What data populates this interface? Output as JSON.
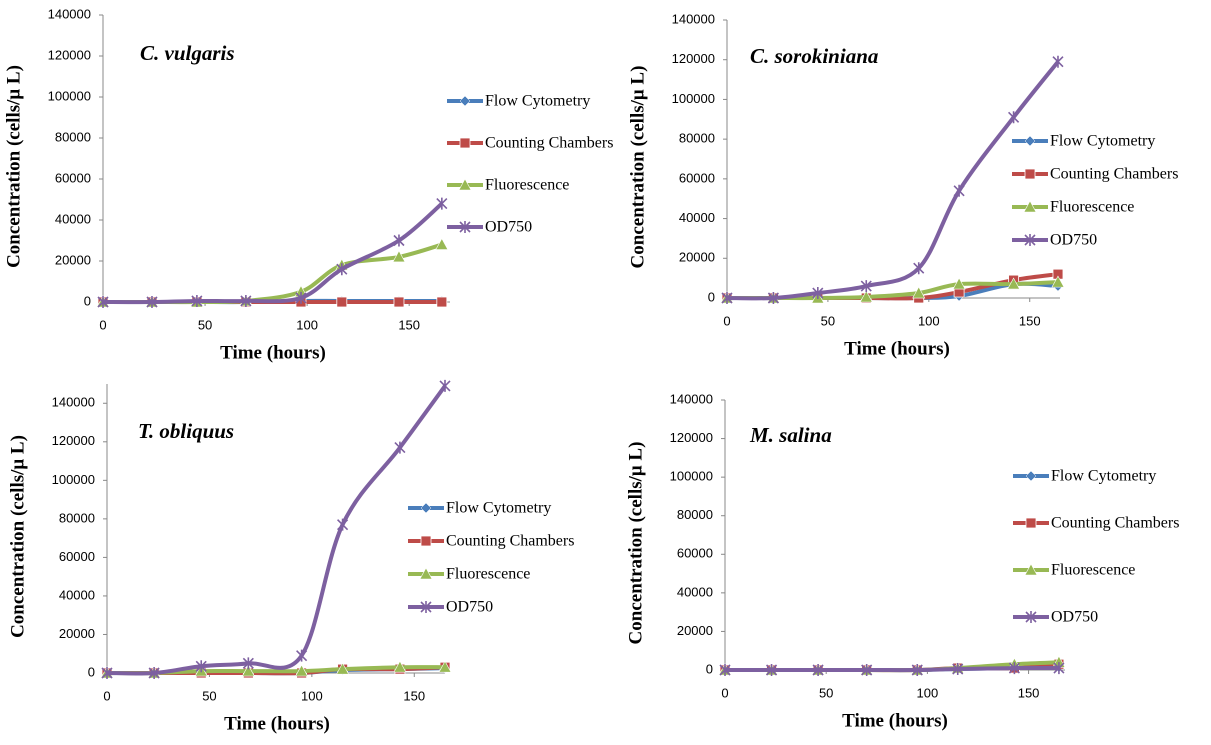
{
  "chart_data": [
    {
      "type": "line",
      "title": "C. vulgaris",
      "x_label": "Time (hours)",
      "y_label": "Concentration (cells/μ L)",
      "x": [
        0,
        24,
        46,
        70,
        97,
        117,
        145,
        166
      ],
      "xlim": [
        0,
        170
      ],
      "xticks": [
        0,
        50,
        100,
        150
      ],
      "ylim": [
        0,
        140000
      ],
      "yticks": [
        0,
        20000,
        40000,
        60000,
        80000,
        100000,
        120000,
        140000
      ],
      "grid": false,
      "series": [
        {
          "name": "Flow Cytometry",
          "color": "#4a7ebb",
          "marker": "diamond",
          "values": [
            0,
            0,
            0,
            0,
            500,
            500,
            500,
            500
          ]
        },
        {
          "name": "Counting Chambers",
          "color": "#be4b48",
          "marker": "square",
          "values": [
            0,
            0,
            0,
            0,
            0,
            0,
            0,
            0
          ]
        },
        {
          "name": "Fluorescence",
          "color": "#98b954",
          "marker": "triangle",
          "values": [
            0,
            0,
            0,
            500,
            5000,
            18000,
            22000,
            28000
          ]
        },
        {
          "name": "OD750",
          "color": "#7d60a0",
          "marker": "x",
          "values": [
            0,
            0,
            500,
            500,
            2000,
            16000,
            30000,
            48000
          ]
        }
      ]
    },
    {
      "type": "line",
      "title": "C. sorokiniana",
      "x_label": "Time (hours)",
      "y_label": "Concentration (cells/μ L)",
      "x": [
        0,
        23,
        45,
        69,
        95,
        115,
        142,
        164
      ],
      "xlim": [
        0,
        165
      ],
      "xticks": [
        0,
        50,
        100,
        150
      ],
      "ylim": [
        0,
        140000
      ],
      "yticks": [
        0,
        20000,
        40000,
        60000,
        80000,
        100000,
        120000,
        140000
      ],
      "grid": false,
      "series": [
        {
          "name": "Flow Cytometry",
          "color": "#4a7ebb",
          "marker": "diamond",
          "values": [
            0,
            0,
            0,
            0,
            0,
            1000,
            7000,
            6000
          ]
        },
        {
          "name": "Counting Chambers",
          "color": "#be4b48",
          "marker": "square",
          "values": [
            0,
            0,
            0,
            0,
            0,
            3000,
            9000,
            12000
          ]
        },
        {
          "name": "Fluorescence",
          "color": "#98b954",
          "marker": "triangle",
          "values": [
            0,
            0,
            0,
            500,
            2500,
            7000,
            7000,
            8000
          ]
        },
        {
          "name": "OD750",
          "color": "#7d60a0",
          "marker": "x",
          "values": [
            0,
            0,
            2500,
            6000,
            15000,
            54000,
            91000,
            119000
          ]
        }
      ]
    },
    {
      "type": "line",
      "title": "T. obliquus",
      "x_label": "Time (hours)",
      "y_label": "Concentration (cells/μ L)",
      "x": [
        0,
        23,
        46,
        69,
        95,
        115,
        143,
        165
      ],
      "xlim": [
        0,
        165
      ],
      "xticks": [
        0,
        50,
        100,
        150
      ],
      "ylim": [
        0,
        150000
      ],
      "yticks": [
        0,
        20000,
        40000,
        60000,
        80000,
        100000,
        120000,
        140000
      ],
      "grid": false,
      "series": [
        {
          "name": "Flow Cytometry",
          "color": "#4a7ebb",
          "marker": "diamond",
          "values": [
            0,
            0,
            0,
            0,
            0,
            1500,
            2000,
            2500
          ]
        },
        {
          "name": "Counting Chambers",
          "color": "#be4b48",
          "marker": "square",
          "values": [
            0,
            0,
            0,
            0,
            0,
            2000,
            2000,
            3000
          ]
        },
        {
          "name": "Fluorescence",
          "color": "#98b954",
          "marker": "triangle",
          "values": [
            0,
            0,
            1000,
            1000,
            1000,
            2000,
            3000,
            3000
          ]
        },
        {
          "name": "OD750",
          "color": "#7d60a0",
          "marker": "x",
          "values": [
            0,
            0,
            3500,
            5000,
            9000,
            77000,
            117000,
            149000
          ]
        }
      ]
    },
    {
      "type": "line",
      "title": "M. salina",
      "x_label": "Time (hours)",
      "y_label": "Concentration (cells/μ L)",
      "x": [
        0,
        23,
        46,
        70,
        95,
        115,
        143,
        165
      ],
      "xlim": [
        0,
        168
      ],
      "xticks": [
        0,
        50,
        100,
        150
      ],
      "ylim": [
        0,
        140000
      ],
      "yticks": [
        0,
        20000,
        40000,
        60000,
        80000,
        100000,
        120000,
        140000
      ],
      "grid": false,
      "series": [
        {
          "name": "Flow Cytometry",
          "color": "#4a7ebb",
          "marker": "diamond",
          "values": [
            0,
            0,
            0,
            0,
            0,
            500,
            1000,
            1500
          ]
        },
        {
          "name": "Counting Chambers",
          "color": "#be4b48",
          "marker": "square",
          "values": [
            0,
            0,
            0,
            0,
            0,
            1000,
            1000,
            3000
          ]
        },
        {
          "name": "Fluorescence",
          "color": "#98b954",
          "marker": "triangle",
          "values": [
            0,
            0,
            0,
            0,
            0,
            1000,
            3000,
            4000
          ]
        },
        {
          "name": "OD750",
          "color": "#7d60a0",
          "marker": "x",
          "values": [
            0,
            0,
            0,
            0,
            0,
            500,
            1000,
            1000
          ]
        }
      ]
    }
  ]
}
